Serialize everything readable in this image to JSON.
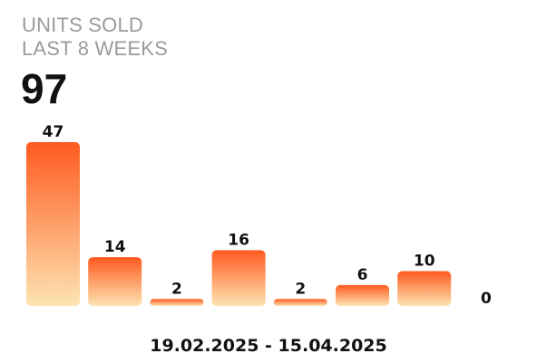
{
  "widget": {
    "title_line1": "UNITS SOLD",
    "title_line2": "LAST 8 WEEKS",
    "total": "97",
    "date_range": "19.02.2025 - 15.04.2025"
  },
  "chart_data": {
    "type": "bar",
    "values": [
      47,
      14,
      2,
      16,
      2,
      6,
      10,
      0
    ],
    "ylim": [
      0,
      47
    ],
    "grid": false,
    "colors": {
      "bar_top": "#ff5a1f",
      "bar_bottom": "#fde4b2",
      "label": "#111111"
    }
  }
}
